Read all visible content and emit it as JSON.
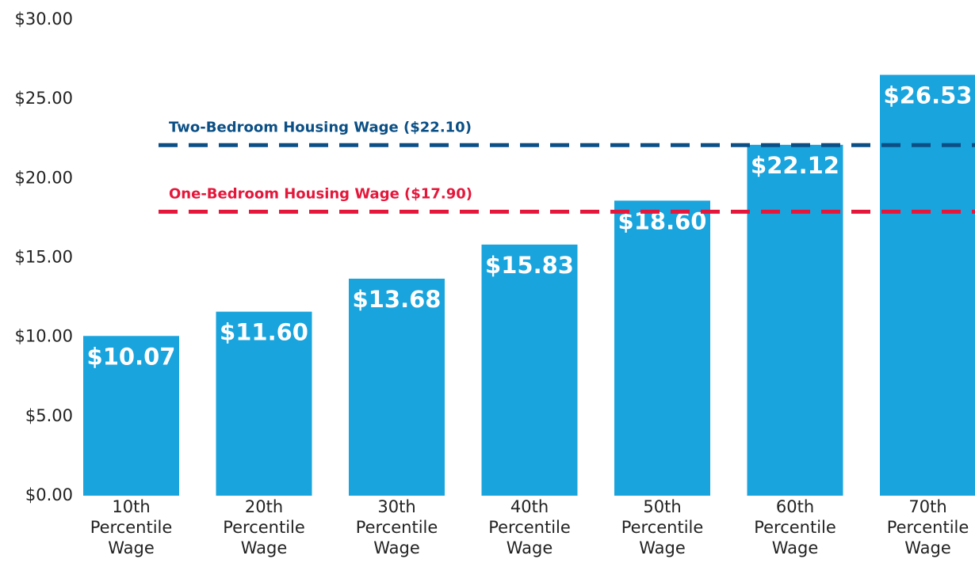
{
  "chart_data": {
    "type": "bar",
    "categories": [
      "10th Percentile Wage",
      "20th Percentile Wage",
      "30th Percentile Wage",
      "40th Percentile Wage",
      "50th Percentile Wage",
      "60th Percentile Wage",
      "70th Percentile Wage"
    ],
    "values": [
      10.07,
      11.6,
      13.68,
      15.83,
      18.6,
      22.12,
      26.53
    ],
    "value_labels": [
      "$10.07",
      "$11.60",
      "$13.68",
      "$15.83",
      "$18.60",
      "$22.12",
      "$26.53"
    ],
    "color": "#19a4dd",
    "ylim": [
      0,
      30
    ],
    "yticks": [
      {
        "value": 0,
        "label": "$0.00"
      },
      {
        "value": 5,
        "label": "$5.00"
      },
      {
        "value": 10,
        "label": "$10.00"
      },
      {
        "value": 15,
        "label": "$15.00"
      },
      {
        "value": 20,
        "label": "$20.00"
      },
      {
        "value": 25,
        "label": "$25.00"
      },
      {
        "value": 30,
        "label": "$30.00"
      }
    ],
    "grid": false,
    "reference_lines": [
      {
        "label": "Two-Bedroom Housing Wage ($22.10)",
        "value": 22.1,
        "color": "#0b4f85"
      },
      {
        "label": "One-Bedroom Housing Wage ($17.90)",
        "value": 17.9,
        "color": "#e4173b"
      }
    ]
  }
}
